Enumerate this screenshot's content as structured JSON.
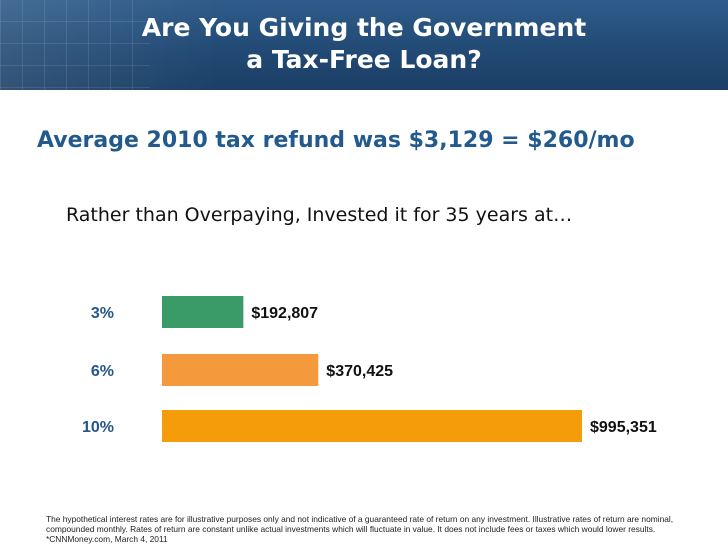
{
  "header": {
    "title_line1": "Are You Giving the Government",
    "title_line2": "a Tax-Free Loan?"
  },
  "subtitle": "Average 2010 tax refund was $3,129 = $260/mo",
  "lead": "Rather than Overpaying, Invested it for 35 years at…",
  "footnote": "The hypothetical interest rates are for illustrative purposes only and not indicative of a guaranteed rate of return on any investment. Illustrative rates of return are nominal, compounded monthly. Rates of return are constant unlike actual investments which will fluctuate in value. It does not include fees or taxes which would lower results.  *CNNMoney.com, March 4, 2011",
  "chart_data": {
    "type": "bar",
    "orientation": "horizontal",
    "title": "",
    "xlabel": "",
    "ylabel": "",
    "categories": [
      "3%",
      "6%",
      "10%"
    ],
    "values": [
      192807,
      370425,
      995351
    ],
    "value_labels": [
      "$192,807",
      "$370,425",
      "$995,351"
    ],
    "colors": [
      "#3a9a68",
      "#f59a3c",
      "#f59c0b"
    ],
    "xlim": [
      0,
      995351
    ],
    "grid": false,
    "legend": "none"
  }
}
